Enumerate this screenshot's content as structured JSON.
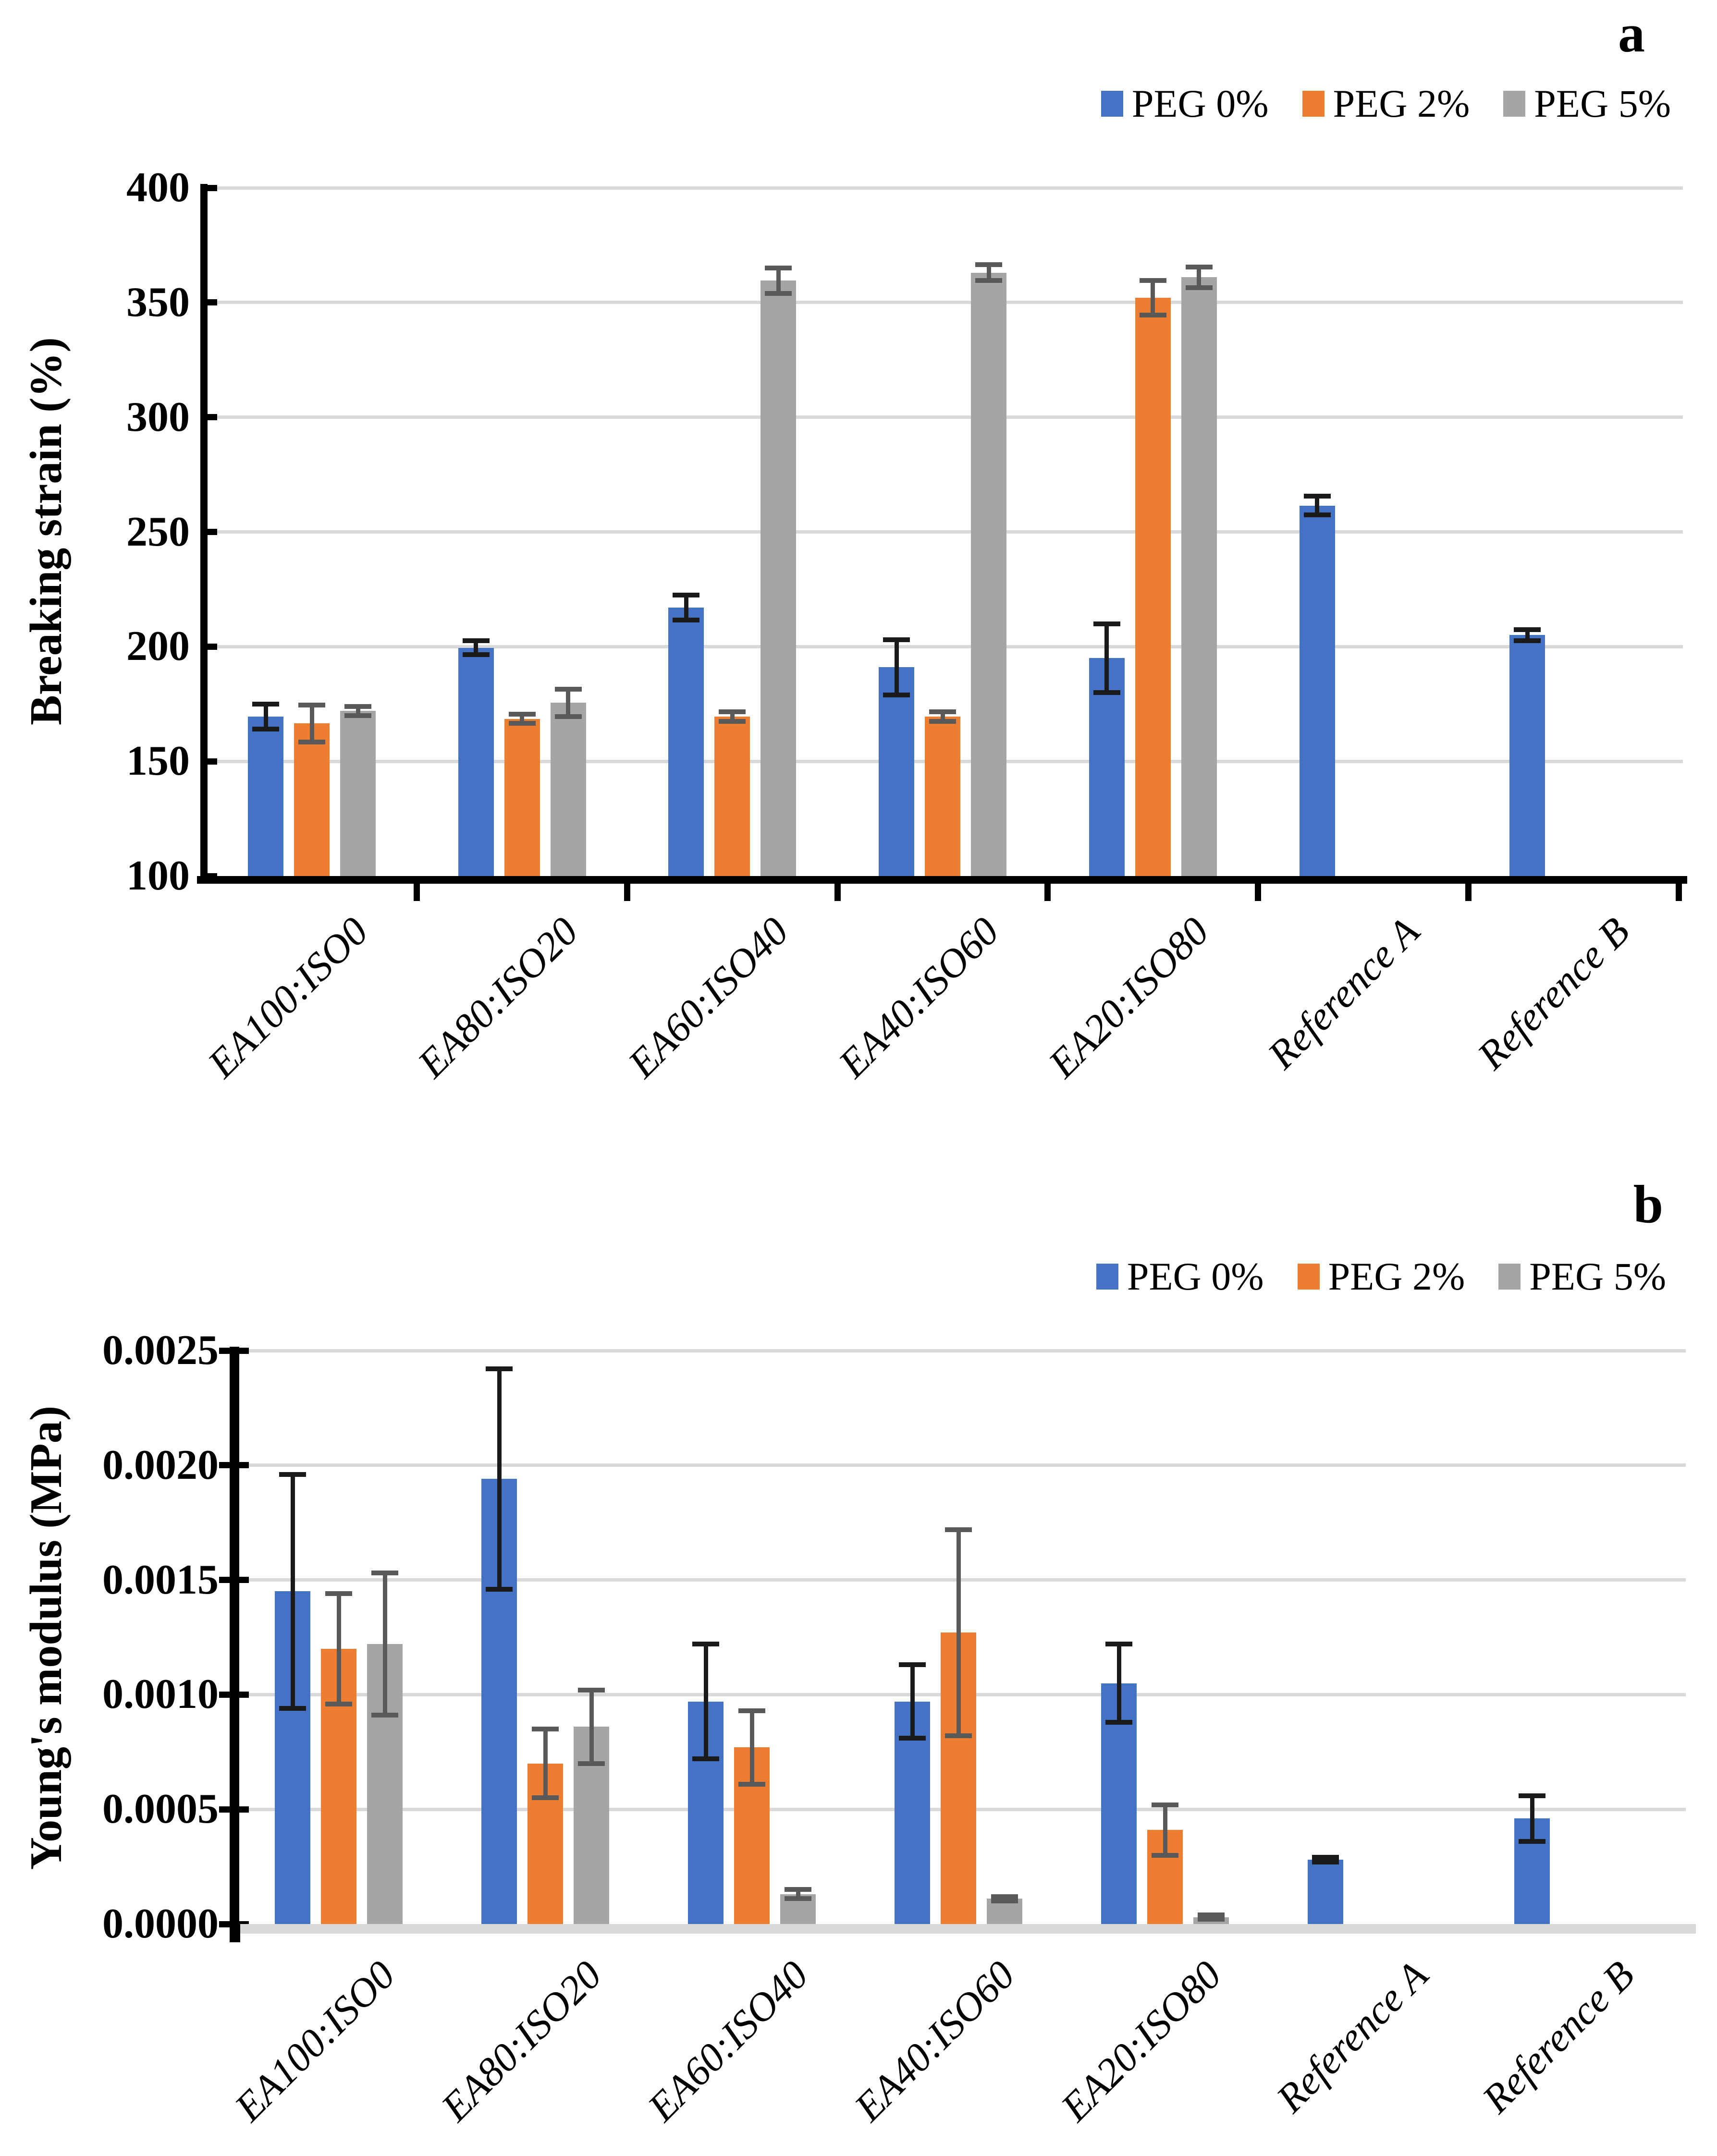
{
  "figure": {
    "description": "Two-panel grouped bar figure comparing PEG contents across EA:ISO blends"
  },
  "colors": {
    "series_blue": "#4472C4",
    "series_orange": "#ED7D31",
    "series_gray": "#A5A5A5",
    "gridline": "#D9D9D9",
    "axis": "#000000",
    "baseline_b": "#D9D9D9",
    "error_dark": "#1a1a1a",
    "error_gray": "#595959"
  },
  "chart_data": [
    {
      "type": "bar",
      "panel_label": "a",
      "title": "",
      "xlabel": "",
      "ylabel": "Breaking strain (%)",
      "ylim": [
        100,
        400
      ],
      "grid": true,
      "legend_position": "top-right",
      "yticks": {
        "values": [
          100,
          150,
          200,
          250,
          300,
          350,
          400
        ],
        "labels": [
          "100",
          "150",
          "200",
          "250",
          "300",
          "350",
          "400"
        ]
      },
      "categories": [
        "EA100:ISO0",
        "EA80:ISO20",
        "EA60:ISO40",
        "EA40:ISO60",
        "EA20:ISO80",
        "Reference A",
        "Reference B"
      ],
      "series": [
        {
          "name": "PEG 0%",
          "color": "#4472C4",
          "error_color": "#1a1a1a",
          "values": [
            169.5,
            199.5,
            217,
            191,
            195,
            261.5,
            205
          ],
          "errors": [
            5.5,
            3,
            5.5,
            12,
            15,
            4,
            2.5
          ]
        },
        {
          "name": "PEG 2%",
          "color": "#ED7D31",
          "error_color": "#595959",
          "values": [
            166.5,
            168.5,
            169.5,
            169.5,
            352,
            null,
            null
          ],
          "errors": [
            8,
            2,
            2,
            2,
            7.5,
            null,
            null
          ]
        },
        {
          "name": "PEG 5%",
          "color": "#A5A5A5",
          "error_color": "#595959",
          "values": [
            172,
            175.5,
            359.5,
            363,
            361,
            null,
            null
          ],
          "errors": [
            2,
            6,
            5.5,
            3.5,
            4.5,
            null,
            null
          ]
        }
      ]
    },
    {
      "type": "bar",
      "panel_label": "b",
      "title": "",
      "xlabel": "",
      "ylabel": "Young's modulus (MPa)",
      "ylim": [
        0,
        0.0025
      ],
      "grid": true,
      "legend_position": "top-right",
      "yticks": {
        "values": [
          0,
          0.0005,
          0.001,
          0.0015,
          0.002,
          0.0025
        ],
        "labels": [
          "0.0000",
          "0.0005",
          "0.0010",
          "0.0015",
          "0.0020",
          "0.0025"
        ]
      },
      "categories": [
        "EA100:ISO0",
        "EA80:ISO20",
        "EA60:ISO40",
        "EA40:ISO60",
        "EA20:ISO80",
        "Reference A",
        "Reference B"
      ],
      "series": [
        {
          "name": "PEG 0%",
          "color": "#4472C4",
          "error_color": "#1a1a1a",
          "values": [
            0.00145,
            0.00194,
            0.00097,
            0.00097,
            0.00105,
            0.00028,
            0.00046
          ],
          "errors": [
            0.00051,
            0.00048,
            0.00025,
            0.00016,
            0.00017,
            1e-05,
            0.0001
          ]
        },
        {
          "name": "PEG 2%",
          "color": "#ED7D31",
          "error_color": "#595959",
          "values": [
            0.0012,
            0.0007,
            0.00077,
            0.00127,
            0.00041,
            null,
            null
          ],
          "errors": [
            0.00024,
            0.00015,
            0.00016,
            0.00045,
            0.00011,
            null,
            null
          ]
        },
        {
          "name": "PEG 5%",
          "color": "#A5A5A5",
          "error_color": "#595959",
          "values": [
            0.00122,
            0.00086,
            0.00013,
            0.00011,
            3e-05,
            null,
            null
          ],
          "errors": [
            0.00031,
            0.00016,
            2e-05,
            1e-05,
            1e-05,
            null,
            null
          ]
        }
      ]
    }
  ]
}
